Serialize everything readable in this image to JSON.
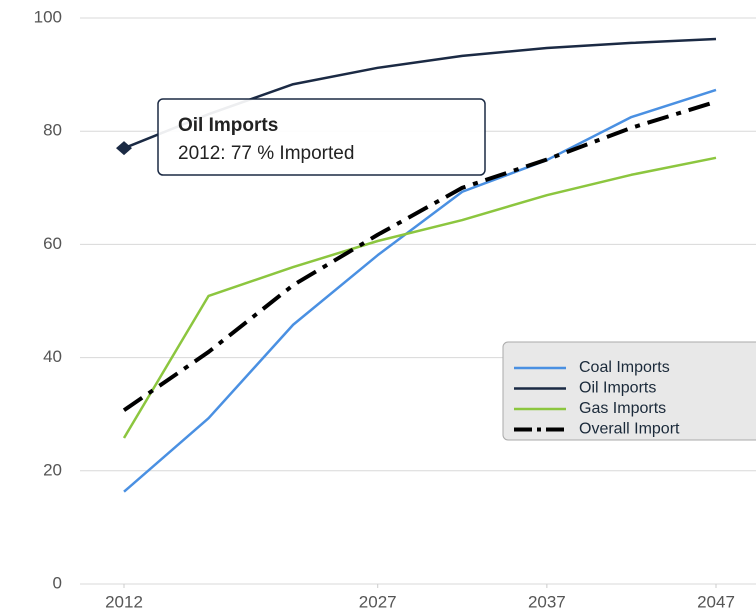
{
  "chart_data": {
    "type": "line",
    "x": [
      2012,
      2017,
      2022,
      2027,
      2032,
      2037,
      2042,
      2047
    ],
    "xlim": [
      2012,
      2047
    ],
    "xticks": [
      2012,
      2027,
      2037,
      2047
    ],
    "ylim": [
      0,
      100
    ],
    "yticks": [
      0,
      20,
      40,
      60,
      80,
      100
    ],
    "grid": true,
    "series": [
      {
        "name": "Coal Imports",
        "color": "#4a90e2",
        "dash": "solid",
        "values": [
          16.3,
          29.3,
          45.8,
          58.1,
          69.3,
          74.9,
          82.5,
          87.3
        ]
      },
      {
        "name": "Oil Imports",
        "color": "#1b2a44",
        "dash": "solid",
        "values": [
          77,
          83,
          88.3,
          91.2,
          93.3,
          94.7,
          95.6,
          96.3
        ]
      },
      {
        "name": "Gas Imports",
        "color": "#8cc63f",
        "dash": "solid",
        "values": [
          25.8,
          50.9,
          56,
          60.6,
          64.3,
          68.7,
          72.3,
          75.3
        ]
      },
      {
        "name": "Overall Import",
        "color": "#000000",
        "dash": "dashdot",
        "values": [
          30.7,
          41,
          52.8,
          61.7,
          70,
          75,
          80.6,
          85.2
        ]
      }
    ],
    "legend": "right",
    "tooltip": {
      "title": "Oil Imports",
      "text": "2012: 77 % Imported"
    }
  }
}
